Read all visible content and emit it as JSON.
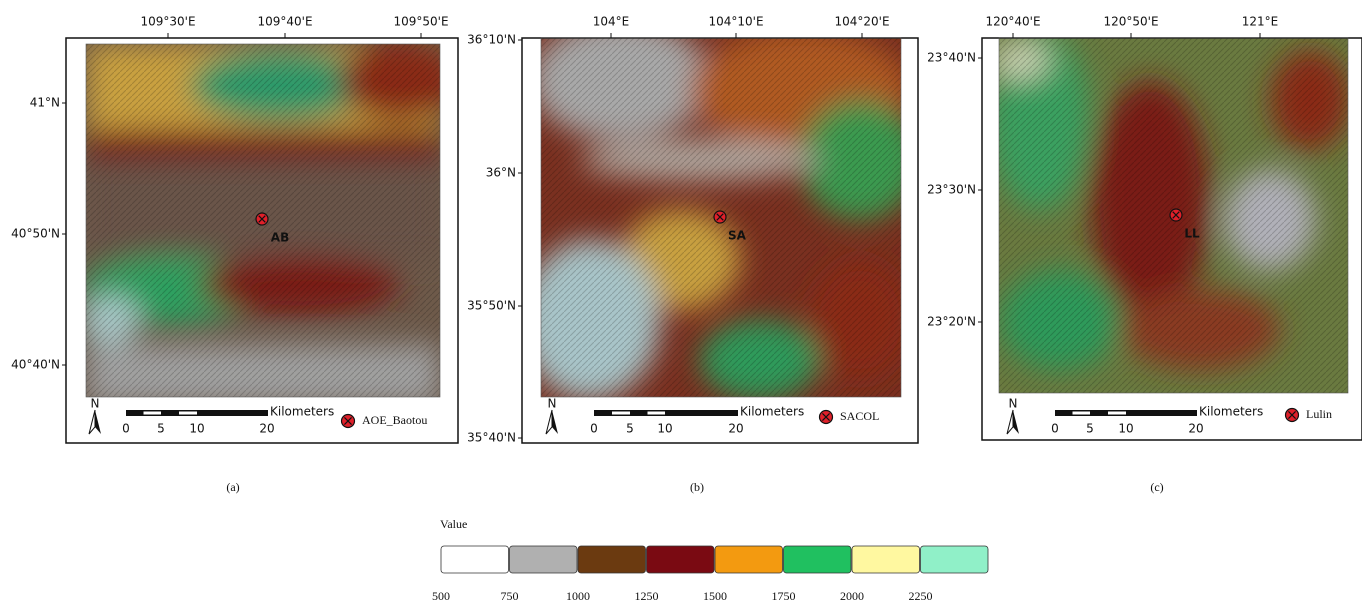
{
  "panels": [
    {
      "label": "(a)",
      "lon_ticks": [
        "109°30'E",
        "109°40'E",
        "109°50'E"
      ],
      "lat_ticks": [
        "41°N",
        "40°50'N",
        "40°40'N"
      ],
      "station_code": "AB",
      "station_name": "AOE_Baotou",
      "north": "N",
      "scale_unit": "Kilometers",
      "scale_ticks": [
        "0",
        "5",
        "10",
        "20"
      ]
    },
    {
      "label": "(b)",
      "lon_ticks": [
        "104°E",
        "104°10'E",
        "104°20'E"
      ],
      "lat_ticks": [
        "36°10'N",
        "36°N",
        "35°50'N",
        "35°40'N"
      ],
      "station_code": "SA",
      "station_name": "SACOL",
      "north": "N",
      "scale_unit": "Kilometers",
      "scale_ticks": [
        "0",
        "5",
        "10",
        "20"
      ]
    },
    {
      "label": "(c)",
      "lon_ticks": [
        "120°40'E",
        "120°50'E",
        "121°E"
      ],
      "lat_ticks": [
        "23°40'N",
        "23°30'N",
        "23°20'N"
      ],
      "station_code": "LL",
      "station_name": "Lulin",
      "north": "N",
      "scale_unit": "Kilometers",
      "scale_ticks": [
        "0",
        "5",
        "10",
        "20"
      ]
    }
  ],
  "legend": {
    "title": "Value",
    "labels": [
      500,
      750,
      1000,
      1250,
      1500,
      1750,
      2000,
      2250
    ],
    "colors": [
      "#ffffff",
      "#b0b0b0",
      "#6b3a10",
      "#7a0a12",
      "#f39a10",
      "#20c060",
      "#fff8a0",
      "#90f0c8"
    ]
  }
}
